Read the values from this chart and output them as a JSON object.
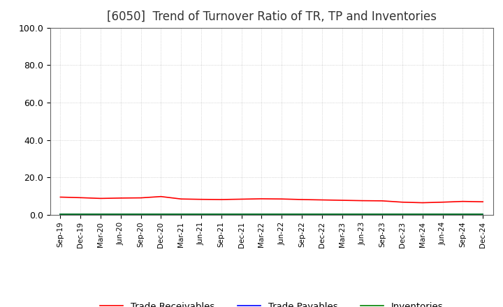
{
  "title": "[6050]  Trend of Turnover Ratio of TR, TP and Inventories",
  "title_fontsize": 12,
  "background_color": "#ffffff",
  "grid_color": "#aaaaaa",
  "ylim": [
    0,
    100
  ],
  "yticks": [
    0.0,
    20.0,
    40.0,
    60.0,
    80.0,
    100.0
  ],
  "x_labels": [
    "Sep-19",
    "Dec-19",
    "Mar-20",
    "Jun-20",
    "Sep-20",
    "Dec-20",
    "Mar-21",
    "Jun-21",
    "Sep-21",
    "Dec-21",
    "Mar-22",
    "Jun-22",
    "Sep-22",
    "Dec-22",
    "Mar-23",
    "Jun-23",
    "Sep-23",
    "Dec-23",
    "Mar-24",
    "Jun-24",
    "Sep-24",
    "Dec-24"
  ],
  "trade_receivables": [
    9.5,
    9.2,
    8.8,
    9.0,
    9.1,
    9.8,
    8.5,
    8.3,
    8.2,
    8.4,
    8.6,
    8.5,
    8.2,
    8.0,
    7.8,
    7.6,
    7.5,
    6.8,
    6.5,
    6.8,
    7.2,
    7.0
  ],
  "trade_payables": [
    0.5,
    0.5,
    0.5,
    0.5,
    0.5,
    0.5,
    0.5,
    0.5,
    0.5,
    0.5,
    0.5,
    0.5,
    0.5,
    0.5,
    0.5,
    0.5,
    0.5,
    0.5,
    0.5,
    0.5,
    0.5,
    0.5
  ],
  "inventories": [
    0.2,
    0.2,
    0.2,
    0.2,
    0.2,
    0.2,
    0.2,
    0.2,
    0.2,
    0.2,
    0.2,
    0.2,
    0.2,
    0.2,
    0.2,
    0.2,
    0.2,
    0.2,
    0.2,
    0.2,
    0.2,
    0.2
  ],
  "tr_color": "#ff0000",
  "tp_color": "#0000ff",
  "inv_color": "#008000",
  "legend_labels": [
    "Trade Receivables",
    "Trade Payables",
    "Inventories"
  ],
  "line_width": 1.2
}
